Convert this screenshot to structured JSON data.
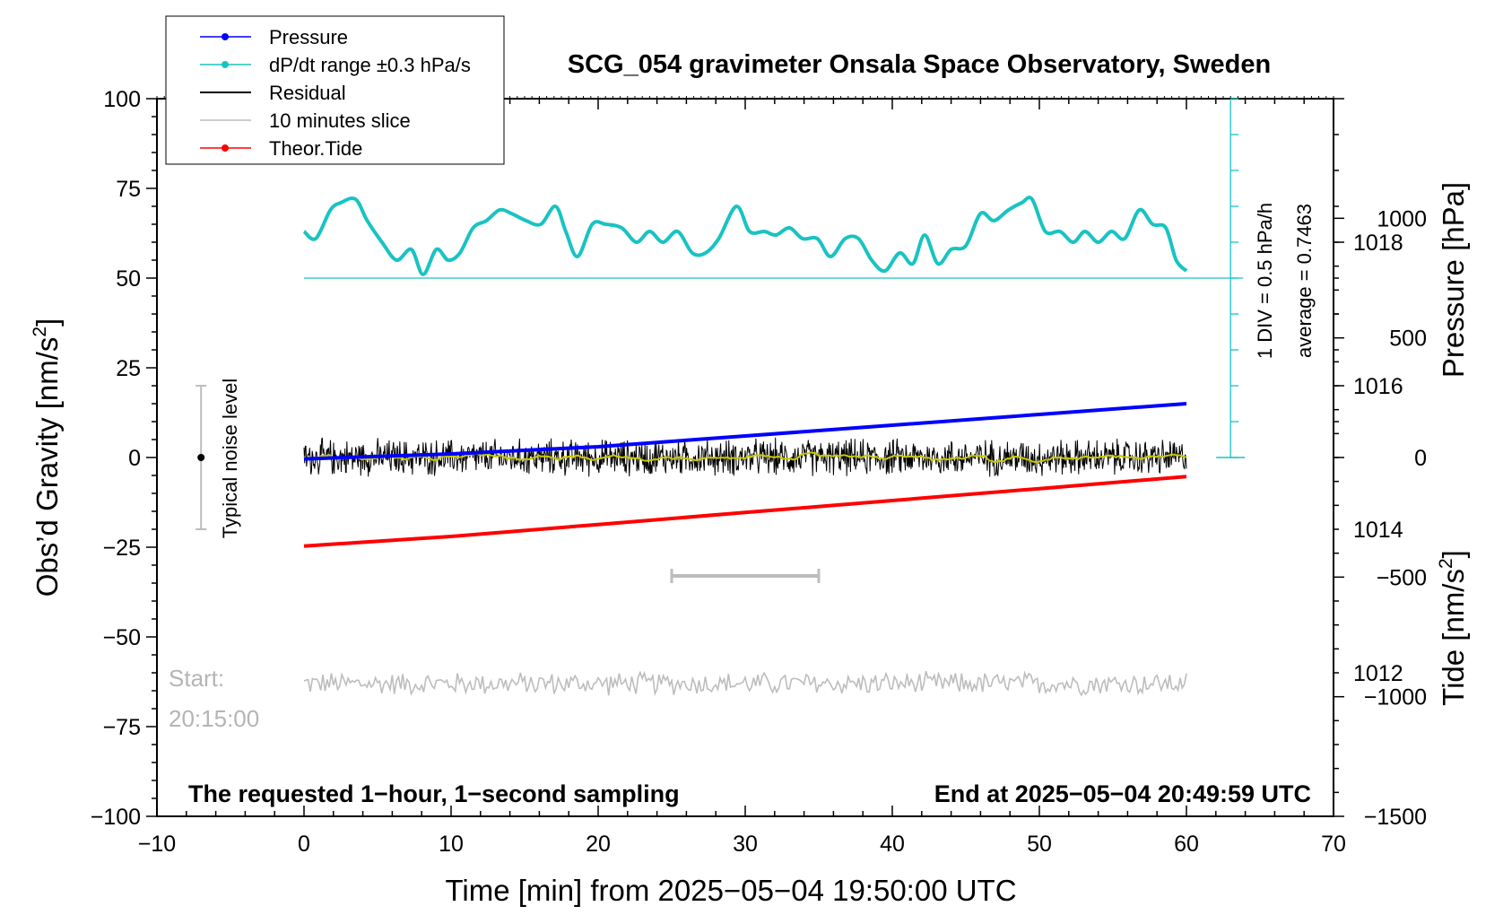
{
  "title": "SCG_054 gravimeter Onsala Space Observatory, Sweden",
  "xlabel": "Time [min] from 2025−05−04 19:50:00 UTC",
  "ylabel_left_main": "Obs’d Gravity [nm/s",
  "ylabel_left_sup": "2",
  "ylabel_left_end": "]",
  "ylabel_pressure": "Pressure [hPa]",
  "ylabel_tide_main": "Tide [nm/s",
  "ylabel_tide_sup": "2",
  "ylabel_tide_end": "]",
  "bottom_left_note": "The requested 1−hour, 1−second sampling",
  "bottom_right_note": "End at 2025−05−04 20:49:59 UTC",
  "start_label": "Start:",
  "start_time": "20:15:00",
  "noise_label": "Typical noise level",
  "scale_div_label": "1 DIV = 0.5 hPa/h",
  "scale_avg_label": "average = 0.7463",
  "legend": [
    {
      "label": "Pressure",
      "color": "#0000ff",
      "marker": true
    },
    {
      "label": "dP/dt range ±0.3 hPa/s",
      "color": "#19c3c3",
      "marker": true
    },
    {
      "label": "Residual",
      "color": "#000000",
      "marker": false
    },
    {
      "label": "10 minutes slice",
      "color": "#bdbdbd",
      "marker": false
    },
    {
      "label": "Theor.Tide",
      "color": "#ff0000",
      "marker": true
    }
  ],
  "chart_data": {
    "type": "line",
    "xlim": [
      -10,
      70
    ],
    "ylim_gravity": [
      -100,
      100
    ],
    "ylim_pressure": [
      1010,
      1020
    ],
    "ylim_tide": [
      -1500,
      1500
    ],
    "x_ticks": [
      -10,
      0,
      10,
      20,
      30,
      40,
      50,
      60,
      70
    ],
    "x_tick_labels": [
      "−10",
      "0",
      "10",
      "20",
      "30",
      "40",
      "50",
      "60",
      "70"
    ],
    "y_gravity_ticks": [
      100,
      75,
      50,
      25,
      0,
      -25,
      -50,
      -75,
      -100
    ],
    "y_gravity_tick_labels": [
      "100",
      "75",
      "50",
      "25",
      "0",
      "−25",
      "−50",
      "−75",
      "−100"
    ],
    "y_pressure_ticks": [
      1018,
      1016,
      1014,
      1012
    ],
    "y_pressure_tick_labels": [
      "1018",
      "1016",
      "1014",
      "1012"
    ],
    "y_tide_ticks": [
      1000,
      500,
      0,
      -500,
      -1000,
      -1500
    ],
    "y_tide_tick_labels": [
      "1000",
      "500",
      "0",
      "−500",
      "−1000",
      "−1500"
    ],
    "pressure": {
      "name": "Pressure",
      "color": "#0000ff",
      "x": [
        0,
        10,
        20,
        30,
        40,
        50,
        60
      ],
      "y": [
        1014.98,
        1015.05,
        1015.15,
        1015.3,
        1015.45,
        1015.6,
        1015.75
      ]
    },
    "dpdt": {
      "name": "dP/dt range ±0.3 hPa/s",
      "color": "#19c3c3",
      "baseline_gravity": 50,
      "x": [
        0,
        0.8,
        1.8,
        2.5,
        3.5,
        4.3,
        5.3,
        6.3,
        7.3,
        8.1,
        9.0,
        9.8,
        10.6,
        11.5,
        12.4,
        13.3,
        14.1,
        15.1,
        16.1,
        17.1,
        17.8,
        18.6,
        19.6,
        20.5,
        21.6,
        22.6,
        23.5,
        24.4,
        25.4,
        26.4,
        27.3,
        28.2,
        29.4,
        30.3,
        31.3,
        32.1,
        33.0,
        33.9,
        34.9,
        35.8,
        36.8,
        37.7,
        38.6,
        39.5,
        40.5,
        41.4,
        42.2,
        43.1,
        44.0,
        45.0,
        46.0,
        46.9,
        47.9,
        48.8,
        49.5,
        50.4,
        51.4,
        52.3,
        53.1,
        54.0,
        54.9,
        55.8,
        56.8,
        57.7,
        58.6,
        59.3,
        60.0
      ],
      "y": [
        63,
        61,
        69,
        71,
        72,
        66,
        60,
        55,
        58,
        51,
        58,
        55,
        57,
        64,
        66,
        69,
        68,
        66,
        65,
        70,
        63,
        56,
        65,
        65,
        64,
        60,
        63,
        60,
        63,
        57,
        57,
        61,
        70,
        63,
        63,
        62,
        64,
        61,
        61,
        56,
        61,
        61,
        55,
        52,
        57,
        54,
        62,
        54,
        58,
        59,
        68,
        66,
        69,
        71,
        72,
        63,
        63,
        60,
        63,
        60,
        63,
        61,
        69,
        65,
        64,
        55,
        52
      ]
    },
    "residual": {
      "name": "Residual",
      "color": "#000000",
      "x_range": [
        0,
        60
      ],
      "center": 0,
      "amplitude": 4,
      "smooth_color": "#c8c800"
    },
    "slice": {
      "name": "10 minutes slice",
      "color": "#bdbdbd",
      "x_range": [
        0,
        60
      ],
      "center_gravity": -63,
      "amplitude": 3,
      "bracket_x": [
        25,
        35
      ],
      "bracket_y_gravity": -33
    },
    "tide": {
      "name": "Theor.Tide",
      "color": "#ff0000",
      "x": [
        0,
        10,
        20,
        30,
        40,
        50,
        60
      ],
      "y": [
        -370,
        -330,
        -280,
        -230,
        -180,
        -130,
        -80
      ]
    },
    "noise_bar": {
      "x": -7,
      "center": 0,
      "half_range": 20
    },
    "scale_axis": {
      "x": 63,
      "div_count": 11,
      "baseline_gravity": 50
    }
  }
}
